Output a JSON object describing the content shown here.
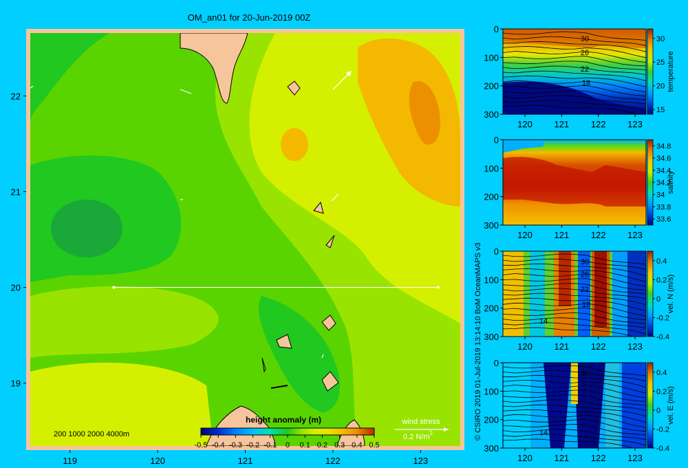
{
  "title": "OM_an01 for 20-Jun-2019 00Z",
  "credit": "© CSIRO 2019   01-Jul-2019 13:14:10 BoM OceanMAPS v3",
  "colors": {
    "background": "#00cfff",
    "land": "#f7c59b",
    "frame": "#f7c59b",
    "scale": [
      "#000080",
      "#0030d0",
      "#0080ff",
      "#00c0ff",
      "#00e0b0",
      "#20c820",
      "#5ad400",
      "#98e400",
      "#d4f000",
      "#f0e000",
      "#f4b800",
      "#ec9000",
      "#d86000",
      "#b82800"
    ]
  },
  "map": {
    "type": "heatmap",
    "x_ticks": [
      "119",
      "120",
      "121",
      "122",
      "123"
    ],
    "y_ticks": [
      "22",
      "21",
      "20",
      "19"
    ],
    "xlim": [
      118.5,
      123.5
    ],
    "ylim": [
      18.3,
      22.7
    ],
    "colorbar": {
      "label": "height anomaly  (m)",
      "ticks": [
        "-0.5",
        "-0.4",
        "-0.3",
        "-0.2",
        "-0.1",
        "0",
        "0.1",
        "0.2",
        "0.3",
        "0.4",
        "0.5"
      ],
      "range": [
        -0.5,
        0.5
      ]
    },
    "depth_legend": "200   1000   2000   4000m",
    "wind_legend": {
      "label": "wind stress",
      "unit": "0.2 N/m",
      "unit_exp": "2"
    },
    "transect": {
      "lat": 20,
      "lon_start": 119.5,
      "lon_end": 123.2
    }
  },
  "chart_data": [
    {
      "type": "heatmap",
      "title": "OM_an01 for 20-Jun-2019 00Z",
      "variable": "height anomaly (m)",
      "x": [
        "119",
        "120",
        "121",
        "122",
        "123"
      ],
      "y": [
        "22",
        "21",
        "20",
        "19"
      ],
      "value_range": [
        -0.5,
        0.5
      ],
      "features": [
        {
          "name": "low",
          "lon": 119.3,
          "lat": 20.6,
          "value": -0.05
        },
        {
          "name": "high",
          "lon": 122.8,
          "lat": 21.5,
          "value": 0.3
        },
        {
          "name": "high",
          "lon": 121.4,
          "lat": 21.4,
          "value": 0.2
        }
      ]
    },
    {
      "type": "heatmap",
      "section": "temperature",
      "x_ticks": [
        "120",
        "121",
        "122",
        "123"
      ],
      "y_ticks": [
        "0",
        "100",
        "200",
        "300"
      ],
      "colorbar_ticks": [
        "30",
        "25",
        "20",
        "15"
      ],
      "colorbar_label": "temperature",
      "contour_labels": [
        "30",
        "26",
        "22",
        "18"
      ],
      "range": [
        14,
        32
      ]
    },
    {
      "type": "heatmap",
      "section": "salinity",
      "x_ticks": [
        "120",
        "121",
        "122",
        "123"
      ],
      "y_ticks": [
        "0",
        "100",
        "200",
        "300"
      ],
      "colorbar_ticks": [
        "34.8",
        "34.6",
        "34.4",
        "34.2",
        "34",
        "33.8",
        "33.6"
      ],
      "colorbar_label": "salinity",
      "range": [
        33.5,
        34.9
      ]
    },
    {
      "type": "heatmap",
      "section": "vel. N (m/s)",
      "x_ticks": [
        "120",
        "121",
        "122",
        "123"
      ],
      "y_ticks": [
        "0",
        "100",
        "200",
        "300"
      ],
      "colorbar_ticks": [
        "0.4",
        "0.2",
        "0",
        "-0.2",
        "-0.4"
      ],
      "colorbar_label": "vel. N (m/s)",
      "contour_labels": [
        "30",
        "26",
        "22",
        "18",
        "14"
      ],
      "range": [
        -0.4,
        0.5
      ]
    },
    {
      "type": "heatmap",
      "section": "vel. E (m/s)",
      "x_ticks": [
        "120",
        "121",
        "122",
        "123"
      ],
      "y_ticks": [
        "0",
        "100",
        "200",
        "300"
      ],
      "colorbar_ticks": [
        "0.4",
        "0.2",
        "0",
        "-0.2",
        "-0.4"
      ],
      "colorbar_label": "vel. E (m/s)",
      "contour_labels": [
        "30",
        "14"
      ],
      "range": [
        -0.4,
        0.5
      ]
    }
  ]
}
